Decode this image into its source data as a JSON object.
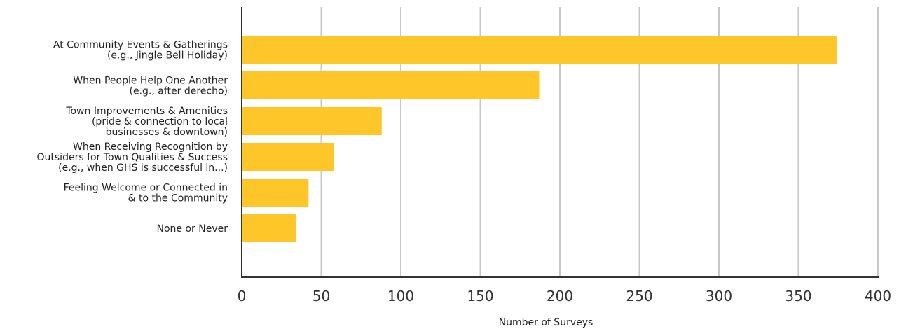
{
  "chart_data": {
    "type": "bar",
    "orientation": "horizontal",
    "categories": [
      [
        "At Community Events & Gatherings",
        "(e.g., Jingle Bell Holiday)"
      ],
      [
        "When People Help One Another",
        "(e.g., after derecho)"
      ],
      [
        "Town Improvements & Amenities",
        "(pride & connection to local",
        "businesses & downtown)"
      ],
      [
        "When Receiving Recognition by",
        "Outsiders for Town Qualities & Success",
        "(e.g., when GHS is successful in...)"
      ],
      [
        "Feeling Welcome or Connected in",
        "& to the Community"
      ],
      [
        "None or Never"
      ]
    ],
    "values": [
      374,
      187,
      88,
      58,
      42,
      34
    ],
    "xlabel": "Number of Surveys",
    "ylabel": "",
    "xlim": [
      0,
      400
    ],
    "xticks": [
      "0",
      "50",
      "100",
      "150",
      "200",
      "250",
      "300",
      "350",
      "400"
    ],
    "grid": "vertical",
    "bar_color": "#FFC629",
    "grid_color": "#c8c8c8",
    "axis_color": "#333333"
  }
}
